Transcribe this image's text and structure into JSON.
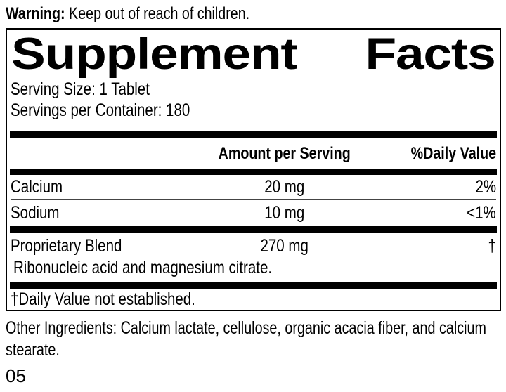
{
  "colors": {
    "ink": "#000000",
    "paper": "#ffffff"
  },
  "warning": {
    "label": "Warning:",
    "text": "Keep out of reach of children."
  },
  "panel": {
    "title": {
      "left": "Supplement",
      "right": "Facts"
    },
    "serving_size": "Serving Size: 1 Tablet",
    "servings_per_container": "Servings per Container: 180",
    "header": {
      "amount": "Amount per Serving",
      "daily_value": "%Daily Value"
    },
    "rows": [
      {
        "name": "Calcium",
        "amount": "20 mg",
        "daily_value": "2%"
      },
      {
        "name": "Sodium",
        "amount": "10 mg",
        "daily_value": "<1%"
      },
      {
        "name": "Proprietary Blend",
        "amount": "270 mg",
        "daily_value": "†",
        "description": "Ribonucleic acid and magnesium citrate."
      }
    ],
    "footnote": "†Daily Value not established."
  },
  "other_ingredients": "Other Ingredients: Calcium lactate, cellulose, organic acacia fiber, and calcium stearate.",
  "lot_code": "05"
}
